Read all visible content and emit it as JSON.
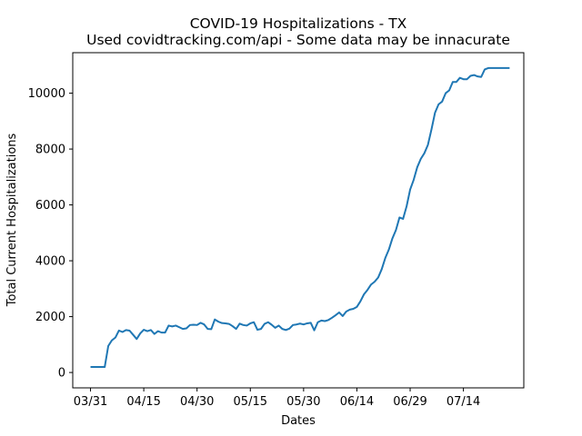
{
  "chart_data": {
    "type": "line",
    "title": "COVID-19 Hospitalizations - TX",
    "subtitle": "Used covidtracking.com/api - Some data may be innacurate",
    "xlabel": "Dates",
    "ylabel": "Total Current Hospitalizations",
    "x_ticks": [
      "03/31",
      "04/15",
      "04/30",
      "05/15",
      "05/30",
      "06/14",
      "06/29",
      "07/14"
    ],
    "x_tick_days": [
      0,
      15,
      30,
      45,
      60,
      75,
      90,
      105
    ],
    "xlim": [
      -5,
      122
    ],
    "y_ticks": [
      0,
      2000,
      4000,
      6000,
      8000,
      10000
    ],
    "ylim": [
      -550,
      11450
    ],
    "grid": false,
    "line_color": "#1f77b4",
    "series": [
      {
        "name": "",
        "x": [
          0,
          1,
          2,
          3,
          4,
          5,
          6,
          7,
          8,
          9,
          10,
          11,
          12,
          13,
          14,
          15,
          16,
          17,
          18,
          19,
          20,
          21,
          22,
          23,
          24,
          25,
          26,
          27,
          28,
          29,
          30,
          31,
          32,
          33,
          34,
          35,
          36,
          37,
          38,
          39,
          40,
          41,
          42,
          43,
          44,
          45,
          46,
          47,
          48,
          49,
          50,
          51,
          52,
          53,
          54,
          55,
          56,
          57,
          58,
          59,
          60,
          61,
          62,
          63,
          64,
          65,
          66,
          67,
          68,
          69,
          70,
          71,
          72,
          73,
          74,
          75,
          76,
          77,
          78,
          79,
          80,
          81,
          82,
          83,
          84,
          85,
          86,
          87,
          88,
          89,
          90,
          91,
          92,
          93,
          94,
          95,
          96,
          97,
          98,
          99,
          100,
          101,
          102,
          103,
          104,
          105,
          106,
          107,
          108,
          109,
          110,
          111,
          112,
          113,
          114,
          115,
          116,
          117,
          118
        ],
        "values": [
          196,
          196,
          196,
          196,
          196,
          950,
          1150,
          1250,
          1500,
          1450,
          1520,
          1500,
          1350,
          1200,
          1400,
          1530,
          1480,
          1520,
          1380,
          1480,
          1430,
          1430,
          1680,
          1650,
          1680,
          1620,
          1560,
          1580,
          1700,
          1710,
          1700,
          1780,
          1720,
          1560,
          1550,
          1900,
          1820,
          1770,
          1760,
          1740,
          1660,
          1560,
          1750,
          1700,
          1680,
          1760,
          1800,
          1530,
          1560,
          1740,
          1800,
          1710,
          1600,
          1680,
          1560,
          1520,
          1570,
          1700,
          1720,
          1750,
          1720,
          1760,
          1780,
          1510,
          1800,
          1860,
          1840,
          1880,
          1960,
          2050,
          2150,
          2020,
          2180,
          2250,
          2280,
          2350,
          2550,
          2800,
          2960,
          3150,
          3250,
          3400,
          3700,
          4100,
          4400,
          4800,
          5100,
          5550,
          5500,
          5950,
          6550,
          6900,
          7350,
          7650,
          7850,
          8150,
          8700,
          9300,
          9600,
          9700,
          10000,
          10100,
          10400,
          10400,
          10550,
          10500,
          10500,
          10620,
          10650,
          10600,
          10580,
          10850,
          10900,
          10900,
          10900,
          10900,
          10900,
          10900,
          10900
        ]
      }
    ]
  }
}
